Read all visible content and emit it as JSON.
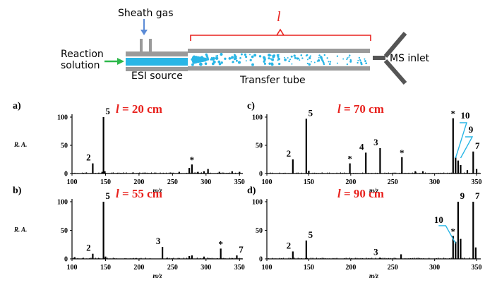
{
  "diagram": {
    "sheath_gas": "Sheath gas",
    "reaction_line1": "Reaction",
    "reaction_line2": "solution",
    "esi_source": "ESI source",
    "transfer_tube": "Transfer tube",
    "ms_inlet": "MS inlet",
    "length_symbol": "l",
    "colors": {
      "arrow_green": "#2db84a",
      "arrow_blue": "#5b8bd6",
      "bracket_red": "#e8211d",
      "spray_cyan": "#29b6e6",
      "tube_gray": "#9a9a9a"
    }
  },
  "chart_data": [
    {
      "type": "bar",
      "panel": "a)",
      "condition": "l = 20 cm",
      "ylabel": "R. A.",
      "xlabel": "m/z",
      "xlim": [
        100,
        355
      ],
      "ylim": [
        0,
        100
      ],
      "xticks": [
        100,
        150,
        200,
        250,
        300,
        350
      ],
      "yticks": [
        0,
        50,
        100
      ],
      "peaks": [
        {
          "x": 131,
          "y": 18,
          "label": "2"
        },
        {
          "x": 147,
          "y": 100,
          "label": "5"
        },
        {
          "x": 145,
          "y": 3
        },
        {
          "x": 149,
          "y": 4
        },
        {
          "x": 260,
          "y": 3
        },
        {
          "x": 275,
          "y": 10
        },
        {
          "x": 279,
          "y": 16,
          "label": "*"
        },
        {
          "x": 288,
          "y": 3
        },
        {
          "x": 297,
          "y": 4
        },
        {
          "x": 303,
          "y": 8
        },
        {
          "x": 320,
          "y": 3
        },
        {
          "x": 339,
          "y": 4
        },
        {
          "x": 350,
          "y": 3
        }
      ]
    },
    {
      "type": "bar",
      "panel": "c)",
      "condition": "l = 70 cm",
      "ylabel": "",
      "xlabel": "m/z",
      "xlim": [
        100,
        355
      ],
      "ylim": [
        0,
        100
      ],
      "xticks": [
        100,
        150,
        200,
        250,
        300,
        350
      ],
      "yticks": [
        0,
        50,
        100
      ],
      "peaks": [
        {
          "x": 131,
          "y": 25,
          "label": "2"
        },
        {
          "x": 147,
          "y": 97,
          "label": "5"
        },
        {
          "x": 150,
          "y": 5
        },
        {
          "x": 199,
          "y": 18,
          "label": "*"
        },
        {
          "x": 218,
          "y": 37,
          "label": "4"
        },
        {
          "x": 235,
          "y": 45,
          "label": "3"
        },
        {
          "x": 261,
          "y": 29,
          "label": "*"
        },
        {
          "x": 277,
          "y": 4
        },
        {
          "x": 286,
          "y": 4
        },
        {
          "x": 322,
          "y": 98,
          "label": "*"
        },
        {
          "x": 325,
          "y": 29
        },
        {
          "x": 328,
          "y": 23
        },
        {
          "x": 331,
          "y": 15
        },
        {
          "x": 339,
          "y": 6
        },
        {
          "x": 346,
          "y": 39,
          "label": "7"
        },
        {
          "x": 350,
          "y": 8
        }
      ],
      "annotations": [
        {
          "label": "10",
          "x": 325
        },
        {
          "label": "9",
          "x": 331
        }
      ]
    },
    {
      "type": "bar",
      "panel": "b)",
      "condition": "l = 55 cm",
      "ylabel": "R. A.",
      "xlabel": "m/z",
      "xlim": [
        100,
        355
      ],
      "ylim": [
        0,
        100
      ],
      "xticks": [
        100,
        150,
        200,
        250,
        300,
        350
      ],
      "yticks": [
        0,
        50,
        100
      ],
      "peaks": [
        {
          "x": 104,
          "y": 3
        },
        {
          "x": 131,
          "y": 9,
          "label": "2"
        },
        {
          "x": 147,
          "y": 100,
          "label": "5"
        },
        {
          "x": 150,
          "y": 4
        },
        {
          "x": 235,
          "y": 21,
          "label": "3"
        },
        {
          "x": 275,
          "y": 5
        },
        {
          "x": 279,
          "y": 6
        },
        {
          "x": 297,
          "y": 4
        },
        {
          "x": 322,
          "y": 18,
          "label": "*"
        },
        {
          "x": 346,
          "y": 6,
          "label": "7"
        }
      ]
    },
    {
      "type": "bar",
      "panel": "d)",
      "condition": "l = 90 cm",
      "ylabel": "",
      "xlabel": "m/z",
      "xlim": [
        100,
        355
      ],
      "ylim": [
        0,
        100
      ],
      "xticks": [
        100,
        150,
        200,
        250,
        300,
        350
      ],
      "yticks": [
        0,
        50,
        100
      ],
      "peaks": [
        {
          "x": 131,
          "y": 13,
          "label": "2"
        },
        {
          "x": 147,
          "y": 32,
          "label": "5"
        },
        {
          "x": 235,
          "y": 2,
          "label": "3"
        },
        {
          "x": 260,
          "y": 8
        },
        {
          "x": 322,
          "y": 40,
          "label": "*"
        },
        {
          "x": 325,
          "y": 30
        },
        {
          "x": 328,
          "y": 100,
          "label": "9"
        },
        {
          "x": 331,
          "y": 35
        },
        {
          "x": 346,
          "y": 100,
          "label": "7"
        },
        {
          "x": 349,
          "y": 20
        }
      ],
      "annotations": [
        {
          "label": "10",
          "x": 325
        }
      ]
    }
  ]
}
